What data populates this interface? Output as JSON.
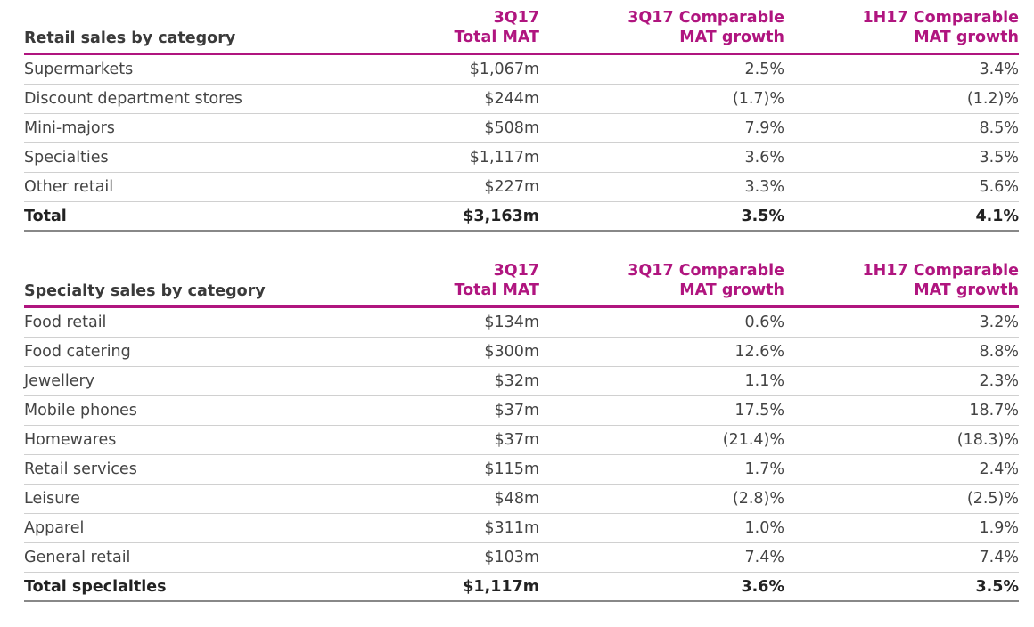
{
  "retail": {
    "title": "Retail sales by category",
    "col1": [
      "3Q17",
      "Total MAT"
    ],
    "col2": [
      "3Q17 Comparable",
      "MAT growth"
    ],
    "col3": [
      "1H17 Comparable",
      "MAT growth"
    ],
    "rows": [
      {
        "label": "Supermarkets",
        "mat": "$1,067m",
        "g3q": "2.5%",
        "g1h": "3.4%"
      },
      {
        "label": "Discount department stores",
        "mat": "$244m",
        "g3q": "(1.7)%",
        "g1h": "(1.2)%"
      },
      {
        "label": "Mini-majors",
        "mat": "$508m",
        "g3q": "7.9%",
        "g1h": "8.5%"
      },
      {
        "label": "Specialties",
        "mat": "$1,117m",
        "g3q": "3.6%",
        "g1h": "3.5%"
      },
      {
        "label": "Other retail",
        "mat": "$227m",
        "g3q": "3.3%",
        "g1h": "5.6%"
      }
    ],
    "total": {
      "label": "Total",
      "mat": "$3,163m",
      "g3q": "3.5%",
      "g1h": "4.1%"
    }
  },
  "specialty": {
    "title": "Specialty sales by category",
    "col1": [
      "3Q17",
      "Total MAT"
    ],
    "col2": [
      "3Q17 Comparable",
      "MAT growth"
    ],
    "col3": [
      "1H17 Comparable",
      "MAT growth"
    ],
    "rows": [
      {
        "label": "Food retail",
        "mat": "$134m",
        "g3q": "0.6%",
        "g1h": "3.2%"
      },
      {
        "label": "Food catering",
        "mat": "$300m",
        "g3q": "12.6%",
        "g1h": "8.8%"
      },
      {
        "label": "Jewellery",
        "mat": "$32m",
        "g3q": "1.1%",
        "g1h": "2.3%"
      },
      {
        "label": "Mobile phones",
        "mat": "$37m",
        "g3q": "17.5%",
        "g1h": "18.7%"
      },
      {
        "label": "Homewares",
        "mat": "$37m",
        "g3q": "(21.4)%",
        "g1h": "(18.3)%"
      },
      {
        "label": "Retail services",
        "mat": "$115m",
        "g3q": "1.7%",
        "g1h": "2.4%"
      },
      {
        "label": "Leisure",
        "mat": "$48m",
        "g3q": "(2.8)%",
        "g1h": "(2.5)%"
      },
      {
        "label": "Apparel",
        "mat": "$311m",
        "g3q": "1.0%",
        "g1h": "1.9%"
      },
      {
        "label": "General retail",
        "mat": "$103m",
        "g3q": "7.4%",
        "g1h": "7.4%"
      }
    ],
    "total": {
      "label": "Total specialties",
      "mat": "$1,117m",
      "g3q": "3.6%",
      "g1h": "3.5%"
    }
  },
  "colors": {
    "accent": "#b0157f",
    "text": "#3b3b3b",
    "rule": "#d0d0d0"
  }
}
